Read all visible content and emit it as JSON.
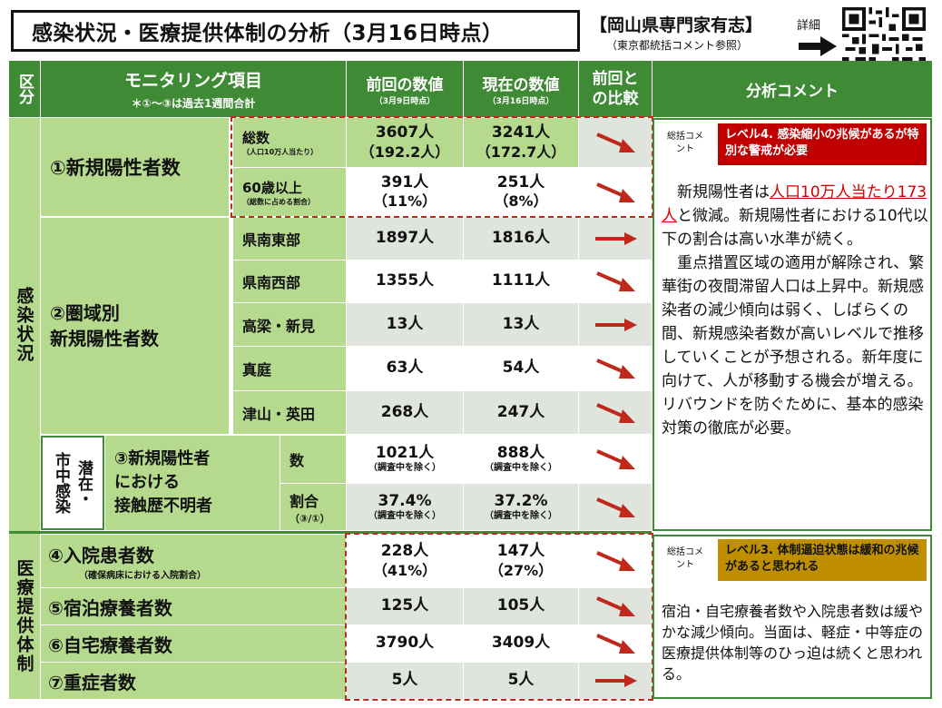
{
  "title": "感染状況・医療提供体制の分析（3月16日時点）",
  "org": {
    "name": "【岡山県専門家有志】",
    "note": "（東京都統括コメント参照）",
    "detail_label": "詳細"
  },
  "headers": {
    "category": "区分",
    "monitoring": "モニタリング項目",
    "monitoring_note": "＊①～③は過去1週間合計",
    "prev": "前回の数値",
    "prev_date": "（3月9日時点）",
    "curr": "現在の数値",
    "curr_date": "（3月16日時点）",
    "compare": "前回との比較",
    "analysis": "分析コメント"
  },
  "sections": {
    "infection": "感染状況",
    "medical": "医療提供体制"
  },
  "rows": {
    "r1_label": "①新規陽性者数",
    "r1a_sub": "総数",
    "r1a_note": "（人口10万人当たり）",
    "r1a_prev": "3607人",
    "r1a_prev_paren": "（192.2人）",
    "r1a_curr": "3241人",
    "r1a_curr_paren": "（172.7人）",
    "r1b_sub": "60歳以上",
    "r1b_note": "（総数に占める割合）",
    "r1b_prev": "391人",
    "r1b_prev_paren": "（11%）",
    "r1b_curr": "251人",
    "r1b_curr_paren": "（8%）",
    "r2_label_1": "②圏域別",
    "r2_label_2": "新規陽性者数",
    "regions": [
      {
        "name": "県南東部",
        "prev": "1897人",
        "curr": "1816人"
      },
      {
        "name": "県南西部",
        "prev": "1355人",
        "curr": "1111人"
      },
      {
        "name": "高梁・新見",
        "prev": "13人",
        "curr": "13人"
      },
      {
        "name": "真庭",
        "prev": "63人",
        "curr": "54人"
      },
      {
        "name": "津山・英田",
        "prev": "268人",
        "curr": "247人"
      }
    ],
    "r3_side_a": "市中感染",
    "r3_side_b": "潜在・",
    "r3_label_1": "③新規陽性者",
    "r3_label_2": "における",
    "r3_label_3": "接触歴不明者",
    "r3a_sub": "数",
    "r3a_prev": "1021人",
    "r3a_curr": "888人",
    "r3_exclude": "（調査中を除く）",
    "r3b_sub": "割合",
    "r3b_note": "（③/①）",
    "r3b_prev": "37.4%",
    "r3b_curr": "37.2%",
    "r4_label": "④入院患者数",
    "r4_note": "（確保病床における入院割合）",
    "r4_prev": "228人",
    "r4_prev_paren": "（41%）",
    "r4_curr": "147人",
    "r4_curr_paren": "（27%）",
    "r5_label": "⑤宿泊療養者数",
    "r5_prev": "125人",
    "r5_curr": "105人",
    "r6_label": "⑥自宅療養者数",
    "r6_prev": "3790人",
    "r6_curr": "3409人",
    "r7_label": "⑦重症者数",
    "r7_prev": "5人",
    "r7_curr": "5人"
  },
  "analysis": {
    "summary_label": "総括コメント",
    "infection_level": "レベル4. 感染縮小の兆候があるが特別な警戒が必要",
    "infection_comment_pre": "　新規陽性者は",
    "infection_comment_red": "人口10万人当たり173人",
    "infection_comment_post": "と微減。新規陽性者における10代以下の割合は高い水準が続く。",
    "infection_comment_2": "　重点措置区域の適用が解除され、繁華街の夜間滞留人口は上昇中。新規感染者の減少傾向は弱く、しばらくの間、新規感染者数が高いレベルで推移していくことが予想される。新年度に向けて、人が移動する機会が増える。リバウンドを防ぐために、基本的感染対策の徹底が必要。",
    "medical_level": "レベル3. 体制逼迫状態は緩和の兆候があると思われる",
    "medical_comment": "宿泊・自宅療養者数や入院患者数は緩やかな減少傾向。当面は、軽症・中等症の医療提供体制等のひっ迫は続くと思われる。"
  },
  "colors": {
    "header_green": "#3f8a35",
    "light_green": "#b5d98d",
    "gray": "#dfe4dc",
    "red": "#c00000",
    "gold": "#bf8f00",
    "arrow_red": "#c0281c"
  }
}
